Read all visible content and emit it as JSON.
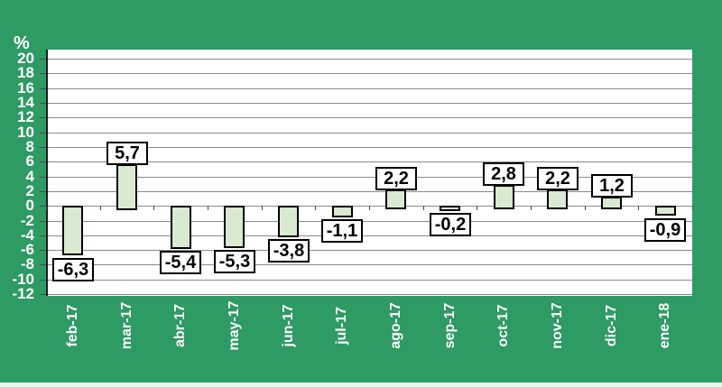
{
  "chart_data": {
    "type": "bar",
    "title": "",
    "ylabel": "%",
    "xlabel": "",
    "categories": [
      "feb-17",
      "mar-17",
      "abr-17",
      "may-17",
      "jun-17",
      "jul-17",
      "ago-17",
      "sep-17",
      "oct-17",
      "nov-17",
      "dic-17",
      "ene-18"
    ],
    "values": [
      -6.3,
      5.7,
      -5.4,
      -5.3,
      -3.8,
      -1.1,
      2.2,
      -0.2,
      2.8,
      2.2,
      1.2,
      -0.9
    ],
    "value_labels": [
      "-6,3",
      "5,7",
      "-5,4",
      "-5,3",
      "-3,8",
      "-1,1",
      "2,2",
      "-0,2",
      "2,8",
      "2,2",
      "1,2",
      "-0,9"
    ],
    "ylim": [
      -12,
      20
    ],
    "y_ticks": [
      20,
      18,
      16,
      14,
      12,
      10,
      8,
      6,
      4,
      2,
      0,
      -2,
      -4,
      -6,
      -8,
      -10,
      -12
    ],
    "grid": true,
    "legend": false,
    "decimal_separator": ",",
    "colors": {
      "background": "#2e9a64",
      "plot_background": "#ffffff",
      "bar_fill": "#d9e9d2",
      "bar_border": "#000000",
      "gridline": "#8a8a8a",
      "axis_text": "#ffffff",
      "data_label_text": "#000000",
      "data_label_box": "#ffffff",
      "bottom_edge_strip": "#e9f6ef"
    }
  }
}
